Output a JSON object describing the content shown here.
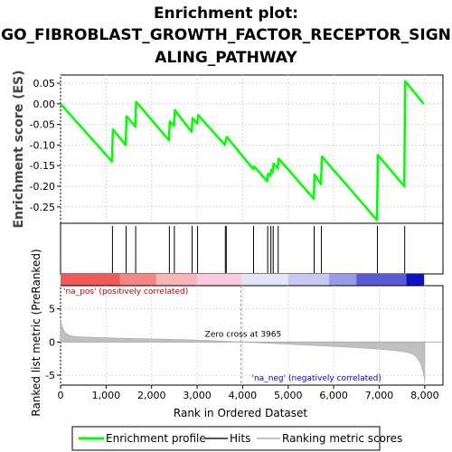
{
  "chart_data": {
    "type": "line",
    "title_lines": [
      "Enrichment plot:",
      "GO_FIBROBLAST_GROWTH_FACTOR_RECEPTOR_SIGN",
      "ALING_PATHWAY"
    ],
    "es_panel": {
      "ylabel": "Enrichment score (ES)",
      "yticks": [
        0.05,
        0.0,
        -0.05,
        -0.1,
        -0.15,
        -0.2,
        -0.25
      ],
      "ytick_labels": [
        "0.05",
        "0.00",
        "-0.05",
        "-0.10",
        "-0.15",
        "-0.20",
        "-0.25"
      ],
      "ylim": [
        -0.29,
        0.07
      ],
      "profile": [
        [
          0,
          0.0
        ],
        [
          1130,
          -0.14
        ],
        [
          1150,
          -0.062
        ],
        [
          1430,
          -0.1
        ],
        [
          1450,
          -0.03
        ],
        [
          1640,
          -0.055
        ],
        [
          1660,
          0.005
        ],
        [
          2380,
          -0.088
        ],
        [
          2400,
          -0.043
        ],
        [
          2490,
          -0.053
        ],
        [
          2510,
          -0.015
        ],
        [
          2880,
          -0.068
        ],
        [
          2900,
          -0.035
        ],
        [
          3000,
          -0.048
        ],
        [
          3020,
          -0.027
        ],
        [
          3610,
          -0.1
        ],
        [
          3630,
          -0.088
        ],
        [
          3650,
          -0.08
        ],
        [
          4230,
          -0.158
        ],
        [
          4250,
          -0.152
        ],
        [
          4540,
          -0.188
        ],
        [
          4560,
          -0.17
        ],
        [
          4610,
          -0.175
        ],
        [
          4630,
          -0.16
        ],
        [
          4660,
          -0.166
        ],
        [
          4680,
          -0.145
        ],
        [
          4770,
          -0.157
        ],
        [
          4790,
          -0.133
        ],
        [
          5560,
          -0.23
        ],
        [
          5580,
          -0.172
        ],
        [
          5720,
          -0.195
        ],
        [
          5740,
          -0.128
        ],
        [
          6950,
          -0.282
        ],
        [
          6970,
          -0.124
        ],
        [
          7550,
          -0.2
        ],
        [
          7570,
          0.055
        ],
        [
          7980,
          0.0
        ]
      ]
    },
    "hits": [
      1140,
      1440,
      1650,
      2390,
      2500,
      2890,
      3010,
      3620,
      3640,
      4240,
      4550,
      4620,
      4670,
      4780,
      5570,
      5730,
      6960,
      7560
    ],
    "ranking_panel": {
      "ylabel": "Ranked list metric (PreRanked)",
      "yticks": [
        5,
        0,
        -5
      ],
      "ytick_labels": [
        "5",
        "0",
        "-5"
      ],
      "ylim": [
        -6.5,
        8.5
      ],
      "zero_cross_label": "Zero cross at 3965",
      "zero_cross": 3965,
      "pos_label": "'na_pos' (positively correlated)",
      "neg_label": "'na_neg' (negatively correlated)"
    },
    "xlabel": "Rank in Ordered Dataset",
    "xticks": [
      0,
      1000,
      2000,
      3000,
      4000,
      5000,
      6000,
      7000,
      8000
    ],
    "xtick_labels": [
      "0",
      "1,000",
      "2,000",
      "3,000",
      "4,000",
      "5,000",
      "6,000",
      "7,000",
      "8,000"
    ],
    "xlim": [
      0,
      8400
    ],
    "n_genes": 8000,
    "legend": [
      "Enrichment profile",
      "Hits",
      "Ranking metric scores"
    ],
    "colors": {
      "profile": "#00ff00",
      "hits": "#000000",
      "ranking": "#c0c0c0",
      "grid": "#d8d8d8",
      "zero_line": "#aaaaaa",
      "pos_text": "#cc0000",
      "neg_text": "#0000cc"
    }
  }
}
